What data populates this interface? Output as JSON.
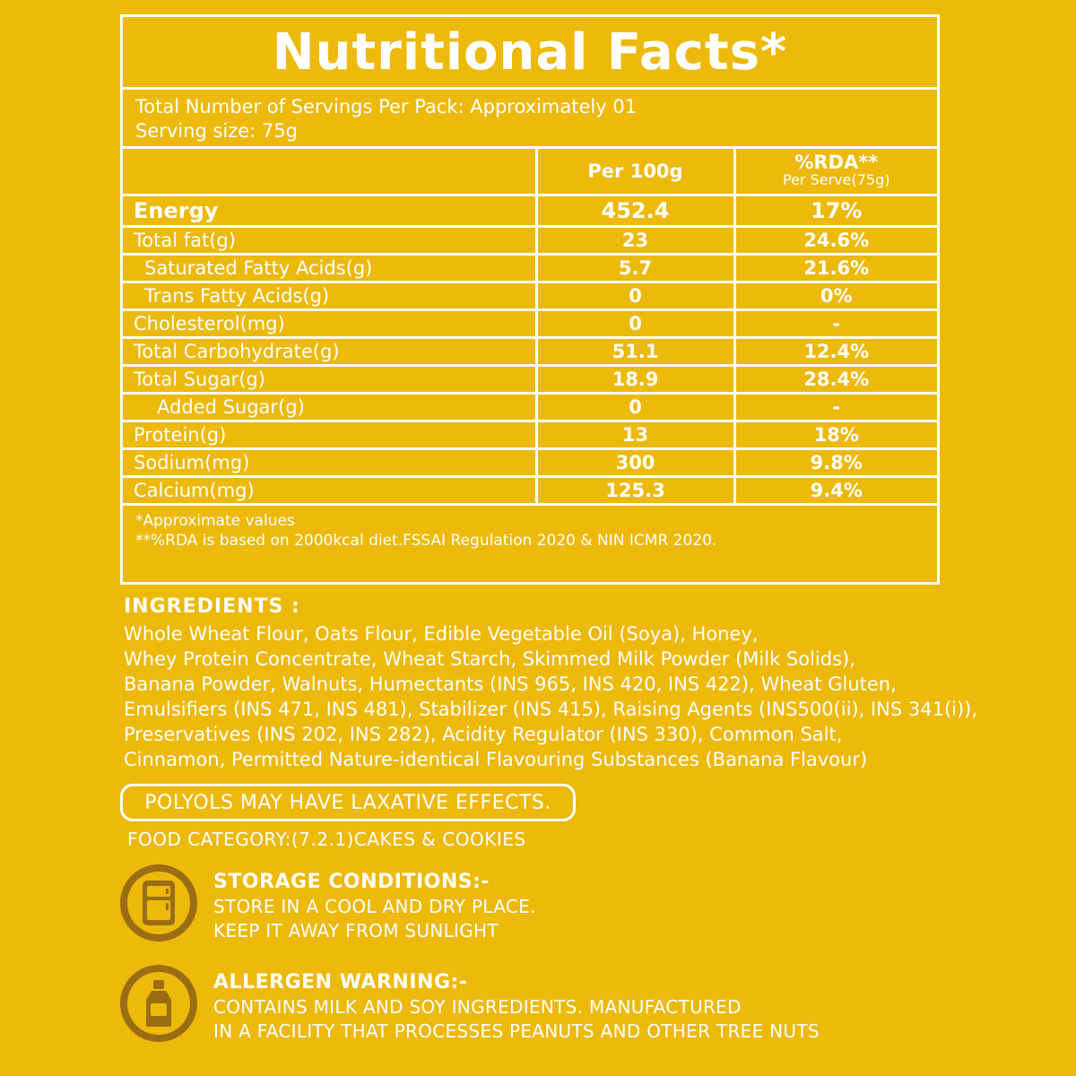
{
  "facts": {
    "title": "Nutritional Facts*",
    "servings_per_pack": "Total Number of Servings Per Pack: Approximately 01",
    "serving_size": "Serving size: 75g",
    "col_per100": "Per 100g",
    "col_rda": "%RDA**",
    "col_rda_sub": "Per Serve(75g)",
    "rows": [
      {
        "name": "Energy",
        "per100": "452.4",
        "rda": "17%"
      },
      {
        "name": "Total fat(g)",
        "per100": "23",
        "rda": "24.6%"
      },
      {
        "name": "Saturated Fatty Acids(g)",
        "per100": "5.7",
        "rda": "21.6%"
      },
      {
        "name": "Trans Fatty Acids(g)",
        "per100": "0",
        "rda": "0%"
      },
      {
        "name": "Cholesterol(mg)",
        "per100": "0",
        "rda": "-"
      },
      {
        "name": "Total Carbohydrate(g)",
        "per100": "51.1",
        "rda": "12.4%"
      },
      {
        "name": "Total Sugar(g)",
        "per100": "18.9",
        "rda": "28.4%"
      },
      {
        "name": "Added Sugar(g)",
        "per100": "0",
        "rda": "-"
      },
      {
        "name": "Protein(g)",
        "per100": "13",
        "rda": "18%"
      },
      {
        "name": "Sodium(mg)",
        "per100": "300",
        "rda": "9.8%"
      },
      {
        "name": "Calcium(mg)",
        "per100": "125.3",
        "rda": "9.4%"
      }
    ],
    "footnote1": "*Approximate values",
    "footnote2": "**%RDA is based on 2000kcal diet.FSSAI Regulation 2020 & NIN ICMR 2020."
  },
  "ingredients": {
    "title": "INGREDIENTS :",
    "lines": [
      "Whole Wheat Flour, Oats Flour, Edible Vegetable Oil (Soya), Honey,",
      "Whey Protein Concentrate, Wheat Starch, Skimmed Milk Powder (Milk Solids),",
      "Banana Powder, Walnuts, Humectants (INS 965, INS 420, INS 422), Wheat Gluten,",
      "Emulsifiers (INS 471, INS 481), Stabilizer (INS 415), Raising Agents (INS500(ii), INS 341(i)),",
      "Preservatives (INS 202, INS 282), Acidity Regulator (INS 330), Common Salt,",
      "Cinnamon, Permitted Nature-identical Flavouring Substances (Banana Flavour)"
    ]
  },
  "laxative_warning": "POLYOLS MAY HAVE LAXATIVE EFFECTS.",
  "food_category": "FOOD CATEGORY:(7.2.1)CAKES & COOKIES",
  "storage": {
    "icon": "refrigerator-icon",
    "title": "STORAGE CONDITIONS:-",
    "line1": "STORE IN A COOL AND DRY PLACE.",
    "line2": "KEEP IT AWAY FROM SUNLIGHT"
  },
  "allergen": {
    "icon": "bottle-icon",
    "title": "ALLERGEN WARNING:-",
    "line1": "CONTAINS MILK AND SOY INGREDIENTS. MANUFACTURED",
    "line2": "IN A FACILITY THAT PROCESSES PEANUTS AND OTHER TREE NUTS"
  },
  "colors": {
    "background": "#EDB90A",
    "text": "#FFFFFF",
    "icon_ring": "#9A6D12"
  }
}
